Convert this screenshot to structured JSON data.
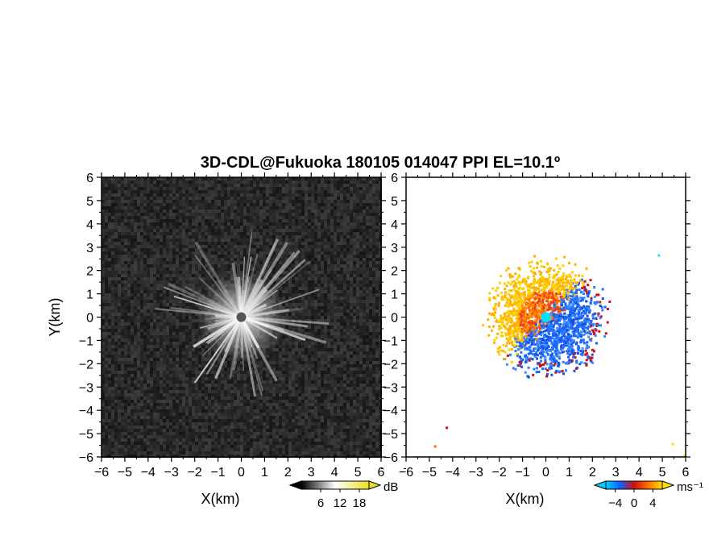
{
  "title": "3D-CDL@Fukuoka 180105 014047 PPI EL=10.1º",
  "chart_data": [
    {
      "type": "heatmap",
      "quantity": "reflectivity intensity",
      "xlabel": "X(km)",
      "ylabel": "Y(km)",
      "xlim": [
        -6,
        6
      ],
      "ylim": [
        -6,
        6
      ],
      "ticks": [
        -6,
        -5,
        -4,
        -3,
        -2,
        -1,
        0,
        1,
        2,
        3,
        4,
        5,
        6
      ],
      "tick_labels": [
        "−6",
        "−5",
        "−4",
        "−3",
        "−2",
        "−1",
        "0",
        "1",
        "2",
        "3",
        "4",
        "5",
        "6"
      ],
      "colorbar": {
        "unit": "dB",
        "ticks": [
          6,
          12,
          18
        ],
        "range": [
          0,
          21
        ],
        "colors": [
          "#000000",
          "#ffffff",
          "#e8e020"
        ]
      },
      "pattern": "radial speckle, bright near center (0,0) fading out to ~2 km, noise background",
      "colors": {
        "background": "#1e1e1e",
        "center": "#ffffff"
      }
    },
    {
      "type": "heatmap",
      "quantity": "radial velocity",
      "xlabel": "X(km)",
      "xlim": [
        -6,
        6
      ],
      "ylim": [
        -6,
        6
      ],
      "ticks": [
        -6,
        -5,
        -4,
        -3,
        -2,
        -1,
        0,
        1,
        2,
        3,
        4,
        5,
        6
      ],
      "tick_labels": [
        "−6",
        "−5",
        "−4",
        "−3",
        "−2",
        "−1",
        "0",
        "1",
        "2",
        "3",
        "4",
        "5",
        "6"
      ],
      "colorbar": {
        "unit": "ms⁻¹",
        "ticks": [
          -4,
          0,
          4
        ],
        "range": [
          -6,
          6
        ],
        "colors": [
          "#00d0ff",
          "#1060ff",
          "#d01010",
          "#ff7000",
          "#ffe000"
        ]
      },
      "pattern": "echo within ~2.8 km: positive (orange/yellow) to the upper-left, negative (blue) to the lower-right",
      "colors": {
        "positive": "#ff8c00",
        "negative": "#1e6bff",
        "center": "#00e5ff"
      }
    }
  ]
}
